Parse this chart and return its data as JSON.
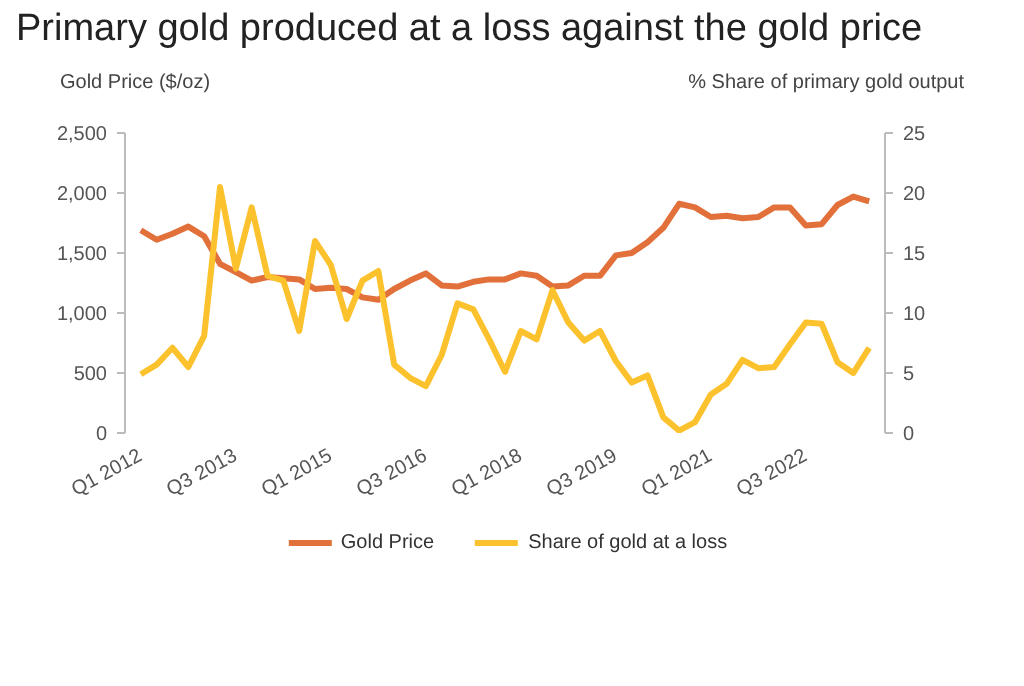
{
  "chart_data": {
    "type": "line",
    "title": "Primary gold produced at a loss against the gold price",
    "ylabel": "Gold Price ($/oz)",
    "y2label": "% Share of primary gold output",
    "categories": [
      "Q1 2012",
      null,
      null,
      null,
      null,
      null,
      "Q3 2013",
      null,
      null,
      null,
      null,
      null,
      "Q1 2015",
      null,
      null,
      null,
      null,
      null,
      "Q3 2016",
      null,
      null,
      null,
      null,
      null,
      "Q1 2018",
      null,
      null,
      null,
      null,
      null,
      "Q3 2019",
      null,
      null,
      null,
      null,
      null,
      "Q1 2021",
      null,
      null,
      null,
      null,
      null,
      "Q3 2022",
      null,
      null,
      null,
      null
    ],
    "series": [
      {
        "name": "Gold Price",
        "color": "#e2703a",
        "values": [
          1690,
          1610,
          1660,
          1720,
          1640,
          1410,
          1340,
          1270,
          1300,
          1290,
          1280,
          1200,
          1210,
          1200,
          1130,
          1110,
          1200,
          1270,
          1330,
          1230,
          1220,
          1260,
          1280,
          1280,
          1330,
          1310,
          1220,
          1230,
          1310,
          1310,
          1480,
          1500,
          1590,
          1710,
          1910,
          1880,
          1800,
          1810,
          1790,
          1800,
          1880,
          1880,
          1730,
          1740,
          1900,
          1970,
          1930
        ]
      },
      {
        "name": "Share of gold at a loss",
        "color": "#fcc22d",
        "axis": "y2",
        "values": [
          4.9,
          5.7,
          7.1,
          5.5,
          8.1,
          20.5,
          13.7,
          18.8,
          13.1,
          12.7,
          8.5,
          16.0,
          14.0,
          9.5,
          12.7,
          13.5,
          5.7,
          4.6,
          3.9,
          6.5,
          10.8,
          10.3,
          7.8,
          5.1,
          8.5,
          7.8,
          11.9,
          9.2,
          7.7,
          8.5,
          6.0,
          4.2,
          4.8,
          1.3,
          0.2,
          0.9,
          3.2,
          4.1,
          6.1,
          5.4,
          5.5,
          7.4,
          9.2,
          9.1,
          5.9,
          5.0,
          7.1
        ]
      }
    ],
    "ylim": [
      0,
      2500
    ],
    "yticks": [
      0,
      {
        "value": 500,
        "label": "500"
      },
      {
        "value": 1000,
        "label": "1,000"
      },
      {
        "value": 1500,
        "label": "1,500"
      },
      {
        "value": 2000,
        "label": "2,000"
      },
      {
        "value": 2500,
        "label": "2,500"
      }
    ],
    "y2lim": [
      0,
      25
    ],
    "y2ticks": [
      0,
      5,
      10,
      15,
      20,
      25
    ],
    "grid": false,
    "legend": "bottom",
    "line_style": "solid",
    "marker": "none"
  }
}
